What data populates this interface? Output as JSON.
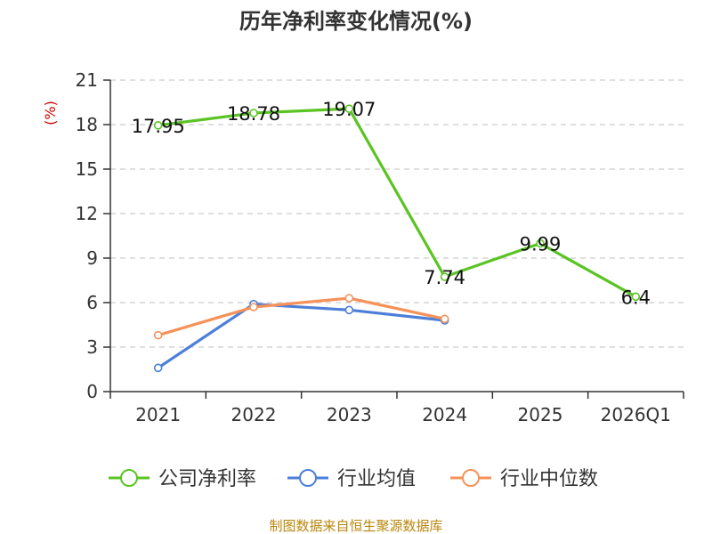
{
  "chart_data": {
    "type": "line",
    "title": "历年净利率变化情况(%)",
    "ylabel": "(%)",
    "categories": [
      "2021",
      "2022",
      "2023",
      "2024",
      "2025",
      "2026Q1"
    ],
    "y_ticks": [
      0,
      3,
      6,
      9,
      12,
      15,
      18,
      21
    ],
    "ylim": [
      0,
      21
    ],
    "grid": true,
    "legend_placement": "bottom",
    "series": [
      {
        "name": "公司净利率",
        "color": "#5ac423",
        "values": [
          17.95,
          18.78,
          19.07,
          7.74,
          9.99,
          6.4
        ],
        "labels": [
          "17.95",
          "18.78",
          "19.07",
          "7.74",
          "9.99",
          "6.4"
        ]
      },
      {
        "name": "行业均值",
        "color": "#4d7fd8",
        "values": [
          1.6,
          5.9,
          5.5,
          4.8,
          null,
          null
        ]
      },
      {
        "name": "行业中位数",
        "color": "#f5925a",
        "values": [
          3.8,
          5.7,
          6.3,
          4.9,
          null,
          null
        ]
      }
    ]
  },
  "footer": {
    "source": "制图数据来自恒生聚源数据库"
  }
}
